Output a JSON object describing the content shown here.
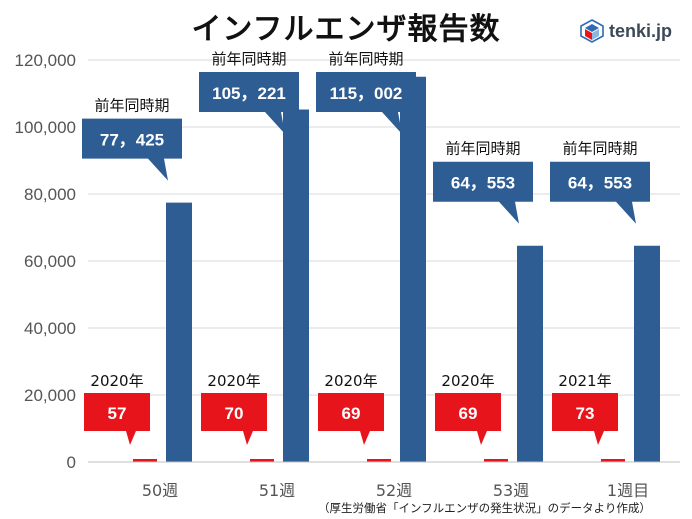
{
  "header": {
    "title": "インフルエンザ報告数",
    "brand": "tenki.jp",
    "brand_icon": "tenki-logo-icon"
  },
  "source_note": "（厚生労働省「インフルエンザの発生状況」のデータより作成）",
  "colors": {
    "current": "#e8141b",
    "previous": "#2e5d94",
    "grid": "#d9d9d9"
  },
  "chart_data": {
    "type": "bar",
    "title": "インフルエンザ報告数",
    "ylim": [
      0,
      120000
    ],
    "yticks": [
      0,
      20000,
      40000,
      60000,
      80000,
      100000,
      120000
    ],
    "ytick_labels": [
      "0",
      "20,000",
      "40,000",
      "60,000",
      "80,000",
      "100,000",
      "120,000"
    ],
    "grid": true,
    "categories": [
      "50週",
      "51週",
      "52週",
      "53週",
      "1週目"
    ],
    "series": [
      {
        "values": [
          57,
          70,
          69,
          69,
          73
        ]
      },
      {
        "values": [
          77425,
          105221,
          115002,
          64553,
          64553
        ]
      }
    ],
    "current_labels": [
      "57",
      "70",
      "69",
      "69",
      "73"
    ],
    "current_years": [
      "2020年",
      "2020年",
      "2020年",
      "2020年",
      "2021年"
    ],
    "previous_labels": [
      "77，425",
      "105，221",
      "115，002",
      "64，553",
      "64，553"
    ],
    "previous_caption": "前年同時期"
  }
}
